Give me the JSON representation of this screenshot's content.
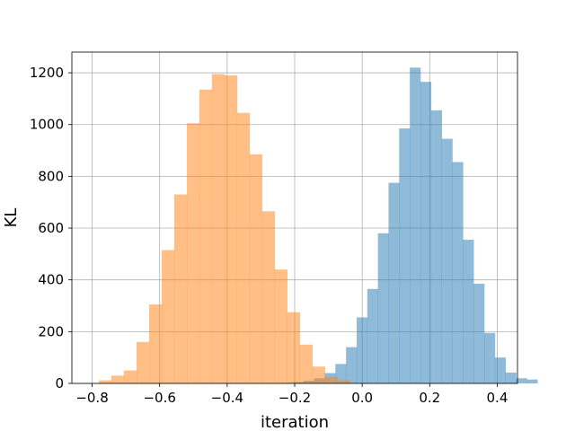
{
  "chart_data": {
    "type": "histogram",
    "title": "",
    "xlabel": "iteration",
    "ylabel": "KL",
    "xlim": [
      -0.86,
      0.46
    ],
    "ylim": [
      0,
      1280
    ],
    "xticks": [
      -0.8,
      -0.6,
      -0.4,
      -0.2,
      0.0,
      0.2,
      0.4
    ],
    "xtick_labels": [
      "−0.8",
      "−0.6",
      "−0.4",
      "−0.2",
      "0.0",
      "0.2",
      "0.4"
    ],
    "yticks": [
      0,
      200,
      400,
      600,
      800,
      1000,
      1200
    ],
    "ytick_labels": [
      "0",
      "200",
      "400",
      "600",
      "800",
      "1000",
      "1200"
    ],
    "grid": true,
    "legend": "none",
    "series": [
      {
        "color": "#1f77b4",
        "alpha": 0.5,
        "bin_start": -0.237,
        "bin_width": 0.0315,
        "values": [
          2,
          5,
          10,
          20,
          40,
          75,
          140,
          255,
          365,
          580,
          775,
          985,
          1220,
          1165,
          1055,
          945,
          855,
          555,
          385,
          195,
          100,
          42,
          20,
          15
        ]
      },
      {
        "color": "#ff7f0e",
        "alpha": 0.5,
        "bin_start": -0.78,
        "bin_width": 0.0372,
        "values": [
          12,
          30,
          50,
          160,
          305,
          515,
          730,
          1005,
          1135,
          1195,
          1190,
          1045,
          885,
          665,
          440,
          275,
          150,
          65,
          25,
          12
        ]
      }
    ]
  }
}
